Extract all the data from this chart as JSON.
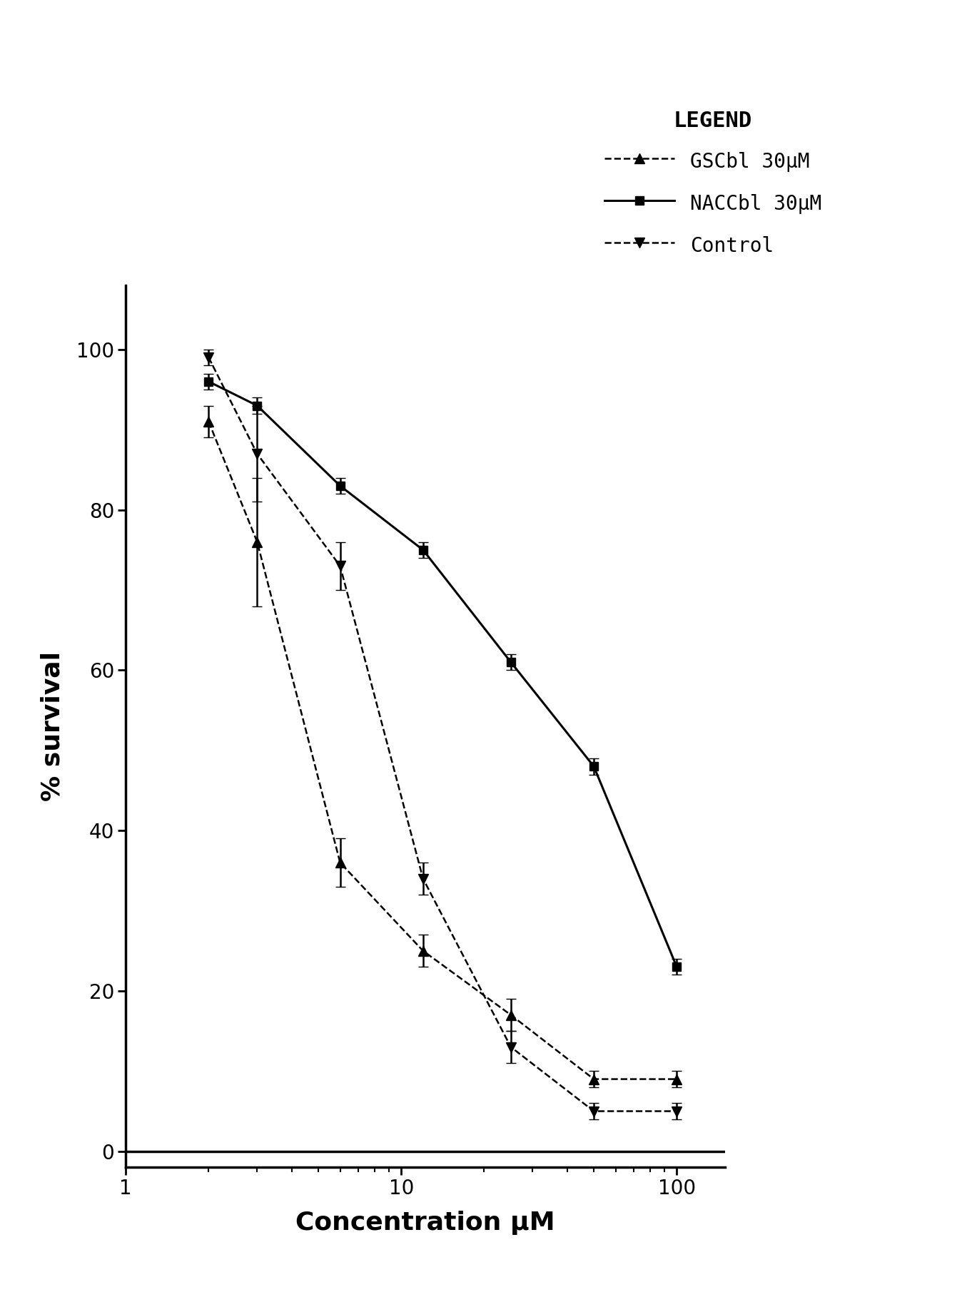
{
  "GSCbl": {
    "x": [
      2,
      3,
      6,
      12,
      25,
      50,
      100
    ],
    "y": [
      91,
      76,
      36,
      25,
      17,
      9,
      9
    ],
    "yerr": [
      2,
      8,
      3,
      2,
      2,
      1,
      1
    ],
    "label": "GSCbl 30μM",
    "linestyle": "--",
    "linewidth": 1.8,
    "marker": "^",
    "color": "#000000",
    "markersize": 10
  },
  "NACCbl": {
    "x": [
      2,
      3,
      6,
      12,
      25,
      50,
      100
    ],
    "y": [
      96,
      93,
      83,
      75,
      61,
      48,
      23
    ],
    "yerr": [
      1,
      1,
      1,
      1,
      1,
      1,
      1
    ],
    "label": "NACCbl 30μM",
    "linestyle": "-",
    "linewidth": 2.2,
    "marker": "s",
    "color": "#000000",
    "markersize": 9
  },
  "Control": {
    "x": [
      2,
      3,
      6,
      12,
      25,
      50,
      100
    ],
    "y": [
      99,
      87,
      73,
      34,
      13,
      5,
      5
    ],
    "yerr": [
      1,
      6,
      3,
      2,
      2,
      1,
      1
    ],
    "label": "Control",
    "linestyle": "--",
    "linewidth": 1.8,
    "marker": "v",
    "color": "#000000",
    "markersize": 10
  },
  "xlim": [
    1.5,
    150
  ],
  "ylim": [
    -2,
    108
  ],
  "yticks": [
    0,
    20,
    40,
    60,
    80,
    100
  ],
  "xlabel": "Concentration μM",
  "ylabel": "% survival",
  "legend_title": "LEGEND",
  "background_color": "#ffffff"
}
